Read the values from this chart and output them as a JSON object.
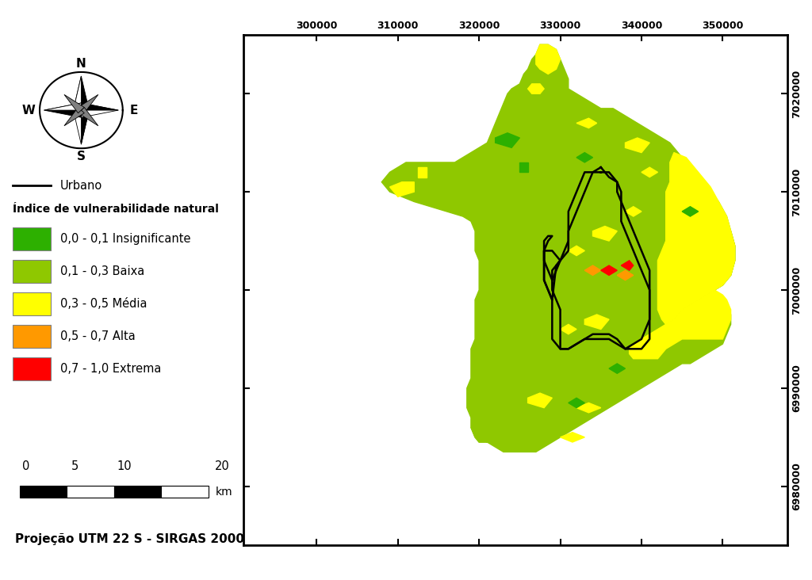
{
  "xlim": [
    291000,
    358000
  ],
  "ylim": [
    6974000,
    7026000
  ],
  "xtick_positions": [
    300000,
    310000,
    320000,
    330000,
    340000,
    350000
  ],
  "ytick_positions": [
    6980000,
    6990000,
    7000000,
    7010000,
    7020000
  ],
  "background_color": "#ffffff",
  "dark_green": "#2db000",
  "light_green": "#8fc800",
  "yellow": "#ffff00",
  "orange": "#ff9900",
  "red": "#ff0000",
  "projection_text": "Projeção UTM 22 S - SIRGAS 2000",
  "urbano_label": "Urbano",
  "legend_title": "Índice de vulnerabilidade natural",
  "legend_items": [
    {
      "label": "0,0 - 0,1 Insignificante",
      "color": "#2db000"
    },
    {
      "label": "0,1 - 0,3 Baixa",
      "color": "#8fc800"
    },
    {
      "label": "0,3 - 0,5 Média",
      "color": "#ffff00"
    },
    {
      "label": "0,5 - 0,7 Alta",
      "color": "#ff9900"
    },
    {
      "label": "0,7 - 1,0 Extrema",
      "color": "#ff0000"
    }
  ],
  "scale_labels": [
    "0",
    "5",
    "10",
    "20"
  ]
}
